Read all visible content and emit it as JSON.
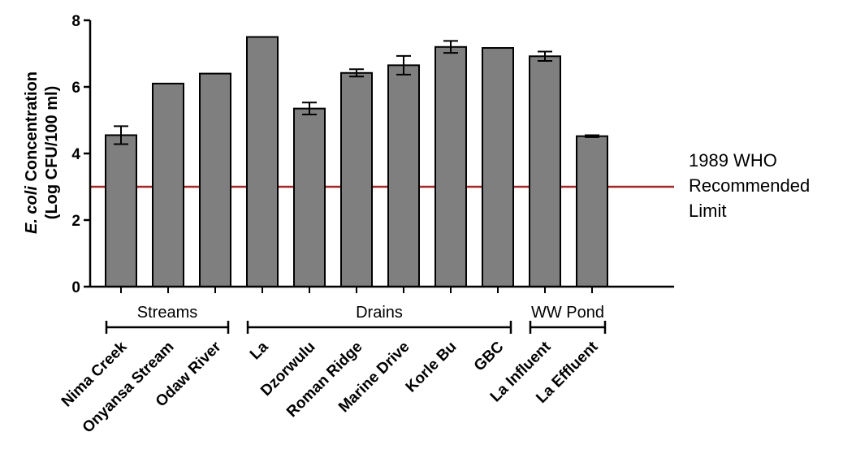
{
  "chart_data": {
    "type": "bar",
    "categories": [
      "Nima Creek",
      "Onyansa Stream",
      "Odaw River",
      "La",
      "Dzorwulu",
      "Roman Ridge",
      "Marine Drive",
      "Korle Bu",
      "GBC",
      "La Influent",
      "La Effluent"
    ],
    "values": [
      4.55,
      6.1,
      6.4,
      7.5,
      5.35,
      6.42,
      6.65,
      7.2,
      7.17,
      6.92,
      4.52
    ],
    "errors": [
      0.27,
      null,
      null,
      null,
      0.18,
      0.11,
      0.28,
      0.18,
      null,
      0.14,
      0.03
    ],
    "groups": [
      {
        "label": "Streams",
        "start": 0,
        "end": 2
      },
      {
        "label": "Drains",
        "start": 3,
        "end": 8
      },
      {
        "label": "WW Pond",
        "start": 9,
        "end": 10
      }
    ],
    "ylabel_italic": "E. coli",
    "ylabel_rest": " Concentration",
    "ylabel_line2": "(Log CFU/100 ml)",
    "yticks": [
      0,
      2,
      4,
      6,
      8
    ],
    "ylim": [
      0,
      8
    ],
    "reference_line": {
      "value": 3,
      "color": "#a32a2a",
      "label_lines": [
        "1989 WHO",
        "Recommended",
        "Limit"
      ]
    },
    "bar_color": "#7f7f7f",
    "grid": false
  }
}
